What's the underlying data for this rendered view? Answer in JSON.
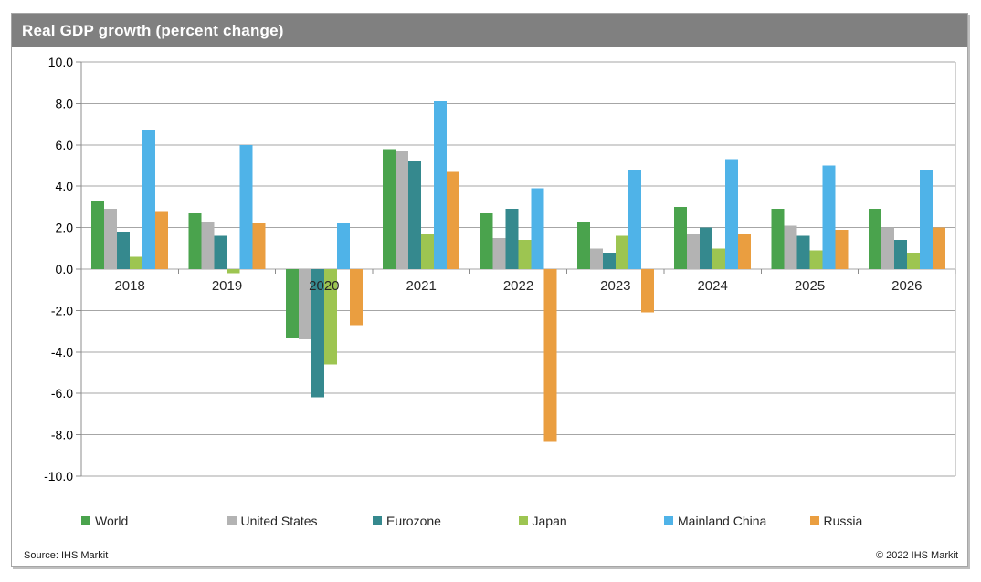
{
  "header": {
    "title": "Real GDP growth (percent change)",
    "title_bar_bg": "#808080",
    "title_color": "#ffffff"
  },
  "footer": {
    "source": "Source: IHS Markit",
    "copyright": "© 2022  IHS Markit"
  },
  "chart_data": {
    "type": "bar",
    "title": "Real GDP growth (percent change)",
    "categories": [
      "2018",
      "2019",
      "2020",
      "2021",
      "2022",
      "2023",
      "2024",
      "2025",
      "2026"
    ],
    "series": [
      {
        "name": "World",
        "color": "#4aa34d",
        "values": [
          3.3,
          2.7,
          -3.3,
          5.8,
          2.7,
          2.3,
          3.0,
          2.9,
          2.9
        ]
      },
      {
        "name": "United States",
        "color": "#b3b3b3",
        "values": [
          2.9,
          2.3,
          -3.4,
          5.7,
          1.5,
          1.0,
          1.7,
          2.1,
          2.0
        ]
      },
      {
        "name": "Eurozone",
        "color": "#35898e",
        "values": [
          1.8,
          1.6,
          -6.2,
          5.2,
          2.9,
          0.8,
          2.0,
          1.6,
          1.4
        ]
      },
      {
        "name": "Japan",
        "color": "#9dc551",
        "values": [
          0.6,
          -0.2,
          -4.6,
          1.7,
          1.4,
          1.6,
          1.0,
          0.9,
          0.8
        ]
      },
      {
        "name": "Mainland China",
        "color": "#4fb3e8",
        "values": [
          6.7,
          6.0,
          2.2,
          8.1,
          3.9,
          4.8,
          5.3,
          5.0,
          4.8
        ]
      },
      {
        "name": "Russia",
        "color": "#ea9e40",
        "values": [
          2.8,
          2.2,
          -2.7,
          4.7,
          -8.3,
          -2.1,
          1.7,
          1.9,
          2.0
        ]
      }
    ],
    "xlabel": "",
    "ylabel": "",
    "ylim": [
      -10,
      10
    ],
    "ytick_step": 2,
    "y_tick_labels": [
      "10.0",
      "8.0",
      "6.0",
      "4.0",
      "2.0",
      "0.0",
      "-2.0",
      "-4.0",
      "-6.0",
      "-8.0",
      "-10.0"
    ],
    "grid": true,
    "legend_position": "bottom",
    "gridline_color": "#a6a6a6",
    "axis_color": "#8c8c8c",
    "category_label_color": "#262626",
    "tick_label_color": "#000000"
  }
}
